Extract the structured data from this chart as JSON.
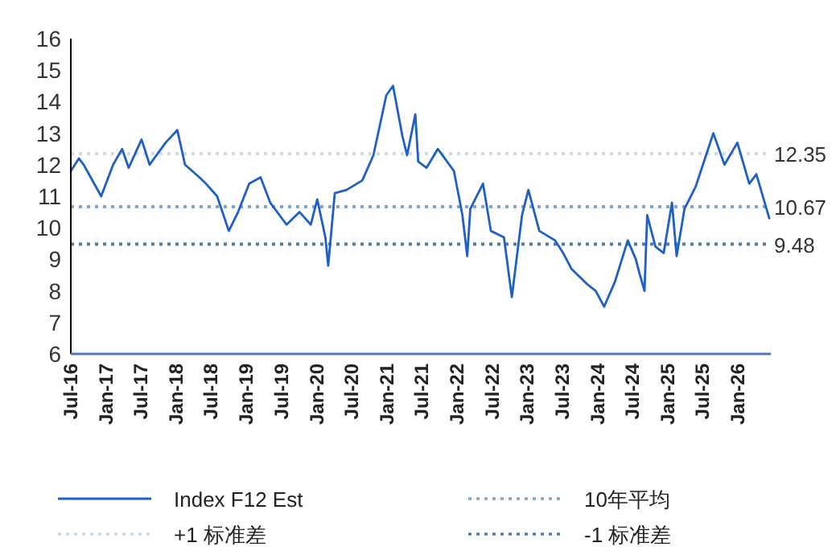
{
  "chart_data": {
    "type": "line",
    "legend": "bottom",
    "line_style": "solid",
    "marker": "none",
    "xlim": [
      "2016-07-01",
      "2026-06-20"
    ],
    "xticks": [
      {
        "value": "2016-07",
        "label": "Jul-16"
      },
      {
        "value": "2017-01",
        "label": "Jan-17"
      },
      {
        "value": "2017-07",
        "label": "Jul-17"
      },
      {
        "value": "2018-01",
        "label": "Jan-18"
      },
      {
        "value": "2018-07",
        "label": "Jul-18"
      },
      {
        "value": "2019-01",
        "label": "Jan-19"
      },
      {
        "value": "2019-07",
        "label": "Jul-19"
      },
      {
        "value": "2020-01",
        "label": "Jan-20"
      },
      {
        "value": "2020-07",
        "label": "Jul-20"
      },
      {
        "value": "2021-01",
        "label": "Jan-21"
      },
      {
        "value": "2021-07",
        "label": "Jul-21"
      },
      {
        "value": "2022-01",
        "label": "Jan-22"
      },
      {
        "value": "2022-07",
        "label": "Jul-22"
      },
      {
        "value": "2023-01",
        "label": "Jan-23"
      },
      {
        "value": "2023-07",
        "label": "Jul-23"
      },
      {
        "value": "2024-01",
        "label": "Jan-24"
      },
      {
        "value": "2024-07",
        "label": "Jul-24"
      },
      {
        "value": "2025-01",
        "label": "Jan-25"
      },
      {
        "value": "2025-07",
        "label": "Jul-25"
      },
      {
        "value": "2026-01",
        "label": "Jan-26"
      }
    ],
    "ylim": [
      6,
      16
    ],
    "yticks": [
      6,
      7,
      8,
      9,
      10,
      11,
      12,
      13,
      14,
      15,
      16
    ],
    "x": [
      "2016-07-01",
      "2016-08-12",
      "2016-09-06",
      "2016-12-06",
      "2017-02-06",
      "2017-03-25",
      "2017-04-28",
      "2017-07-04",
      "2017-08-15",
      "2017-11-06",
      "2018-01-06",
      "2018-02-15",
      "2018-05-01",
      "2018-06-04",
      "2018-08-01",
      "2018-10-01",
      "2018-11-18",
      "2019-01-15",
      "2019-03-15",
      "2019-05-04",
      "2019-07-28",
      "2019-10-04",
      "2019-12-01",
      "2020-01-04",
      "2020-02-15",
      "2020-03-01",
      "2020-04-04",
      "2020-06-04",
      "2020-08-25",
      "2020-10-22",
      "2020-12-28",
      "2021-02-01",
      "2021-03-22",
      "2021-04-15",
      "2021-05-28",
      "2021-06-12",
      "2021-07-25",
      "2021-09-22",
      "2021-12-15",
      "2022-01-28",
      "2022-02-22",
      "2022-03-10",
      "2022-05-15",
      "2022-06-25",
      "2022-09-01",
      "2022-10-12",
      "2022-12-04",
      "2023-01-06",
      "2023-03-04",
      "2023-05-25",
      "2023-07-06",
      "2023-08-18",
      "2023-11-10",
      "2023-12-22",
      "2024-02-04",
      "2024-04-01",
      "2024-06-06",
      "2024-07-18",
      "2024-08-04",
      "2024-09-01",
      "2024-09-15",
      "2024-10-28",
      "2024-12-10",
      "2025-01-22",
      "2025-02-15",
      "2025-03-28",
      "2025-05-25",
      "2025-08-25",
      "2025-10-22",
      "2025-12-28",
      "2026-02-28",
      "2026-04-06",
      "2026-06-12"
    ],
    "series": [
      {
        "name": "Index F12 Est",
        "color": "#1f5fc8",
        "values": [
          11.8,
          12.2,
          12.0,
          11.0,
          12.0,
          12.5,
          11.9,
          12.8,
          12.0,
          12.7,
          13.1,
          12.0,
          11.6,
          11.4,
          11.0,
          9.9,
          10.5,
          11.4,
          11.6,
          10.8,
          10.1,
          10.5,
          10.1,
          10.9,
          9.7,
          8.8,
          11.1,
          11.2,
          11.5,
          12.3,
          14.2,
          14.5,
          12.9,
          12.3,
          13.6,
          12.1,
          11.9,
          12.5,
          11.8,
          10.4,
          9.1,
          10.6,
          11.4,
          9.9,
          9.7,
          7.8,
          10.4,
          11.2,
          9.9,
          9.6,
          9.2,
          8.7,
          8.2,
          8.0,
          7.5,
          8.3,
          9.6,
          9.0,
          8.6,
          8.0,
          10.4,
          9.4,
          9.2,
          10.8,
          9.1,
          10.6,
          11.3,
          13.0,
          12.0,
          12.7,
          11.4,
          11.7,
          10.3
        ]
      }
    ],
    "annotations": [
      "12.35",
      "10.67",
      "9.48"
    ],
    "ref_lines": [
      {
        "axis": "y",
        "value": 12.35,
        "label": "+1 标准差",
        "color": "#c8dcea",
        "line_style": "dotted"
      },
      {
        "axis": "y",
        "value": 10.67,
        "label": "10年平均",
        "color": "#7fa6c8",
        "line_style": "dotted"
      },
      {
        "axis": "y",
        "value": 9.48,
        "label": "-1 标准差",
        "color": "#4f7fa8",
        "line_style": "dotted"
      }
    ]
  }
}
